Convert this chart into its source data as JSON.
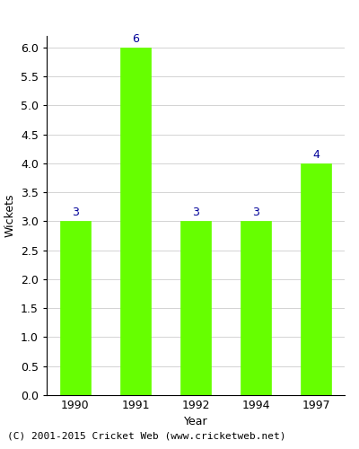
{
  "years": [
    "1990",
    "1991",
    "1992",
    "1994",
    "1997"
  ],
  "wickets": [
    3,
    6,
    3,
    3,
    4
  ],
  "bar_color": "#66ff00",
  "bar_edge_color": "#66ff00",
  "label_color": "#000099",
  "xlabel": "Year",
  "ylabel": "Wickets",
  "ylim": [
    0,
    6.2
  ],
  "yticks": [
    0.0,
    0.5,
    1.0,
    1.5,
    2.0,
    2.5,
    3.0,
    3.5,
    4.0,
    4.5,
    5.0,
    5.5,
    6.0
  ],
  "caption": "(C) 2001-2015 Cricket Web (www.cricketweb.net)",
  "label_fontsize": 9,
  "axis_fontsize": 9,
  "caption_fontsize": 8,
  "bar_width": 0.5
}
